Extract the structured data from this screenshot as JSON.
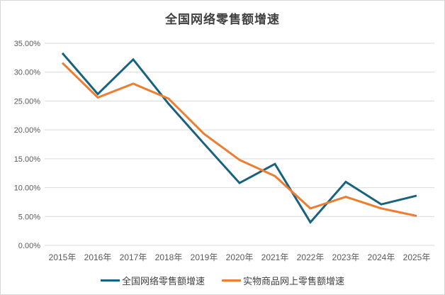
{
  "chart": {
    "title": "全国网络零售额增速",
    "colors": {
      "national_line": "#17637F",
      "physical_line": "#ED7D31",
      "gridline": "#D9D9D9",
      "axis_text": "#595959",
      "title_text": "#404040",
      "border": "#D6D6D6",
      "background": "#FFFFFF"
    }
  },
  "chart_data": {
    "type": "line",
    "title": "全国网络零售额增速",
    "categories": [
      "2015年",
      "2016年",
      "2017年",
      "2018年",
      "2019年",
      "2020年",
      "2021年",
      "2022年",
      "2023年",
      "2024年",
      "2025年"
    ],
    "series": [
      {
        "name": "全国网络零售额增速",
        "color": "#17637F",
        "values": [
          33.3,
          26.2,
          32.2,
          24.5,
          17.6,
          10.8,
          14.1,
          4.0,
          11.0,
          7.1,
          8.6
        ]
      },
      {
        "name": "实物商品网上零售额增速",
        "color": "#ED7D31",
        "values": [
          31.6,
          25.6,
          28.0,
          25.4,
          19.3,
          14.8,
          12.0,
          6.4,
          8.4,
          6.4,
          5.1
        ]
      }
    ],
    "xlabel": "",
    "ylabel": "",
    "ylim": [
      0,
      35
    ],
    "y_tick_step": 5,
    "y_ticks": [
      "0.00%",
      "5.00%",
      "10.00%",
      "15.00%",
      "20.00%",
      "25.00%",
      "30.00%",
      "35.00%"
    ],
    "grid": "horizontal",
    "legend_position": "bottom"
  }
}
